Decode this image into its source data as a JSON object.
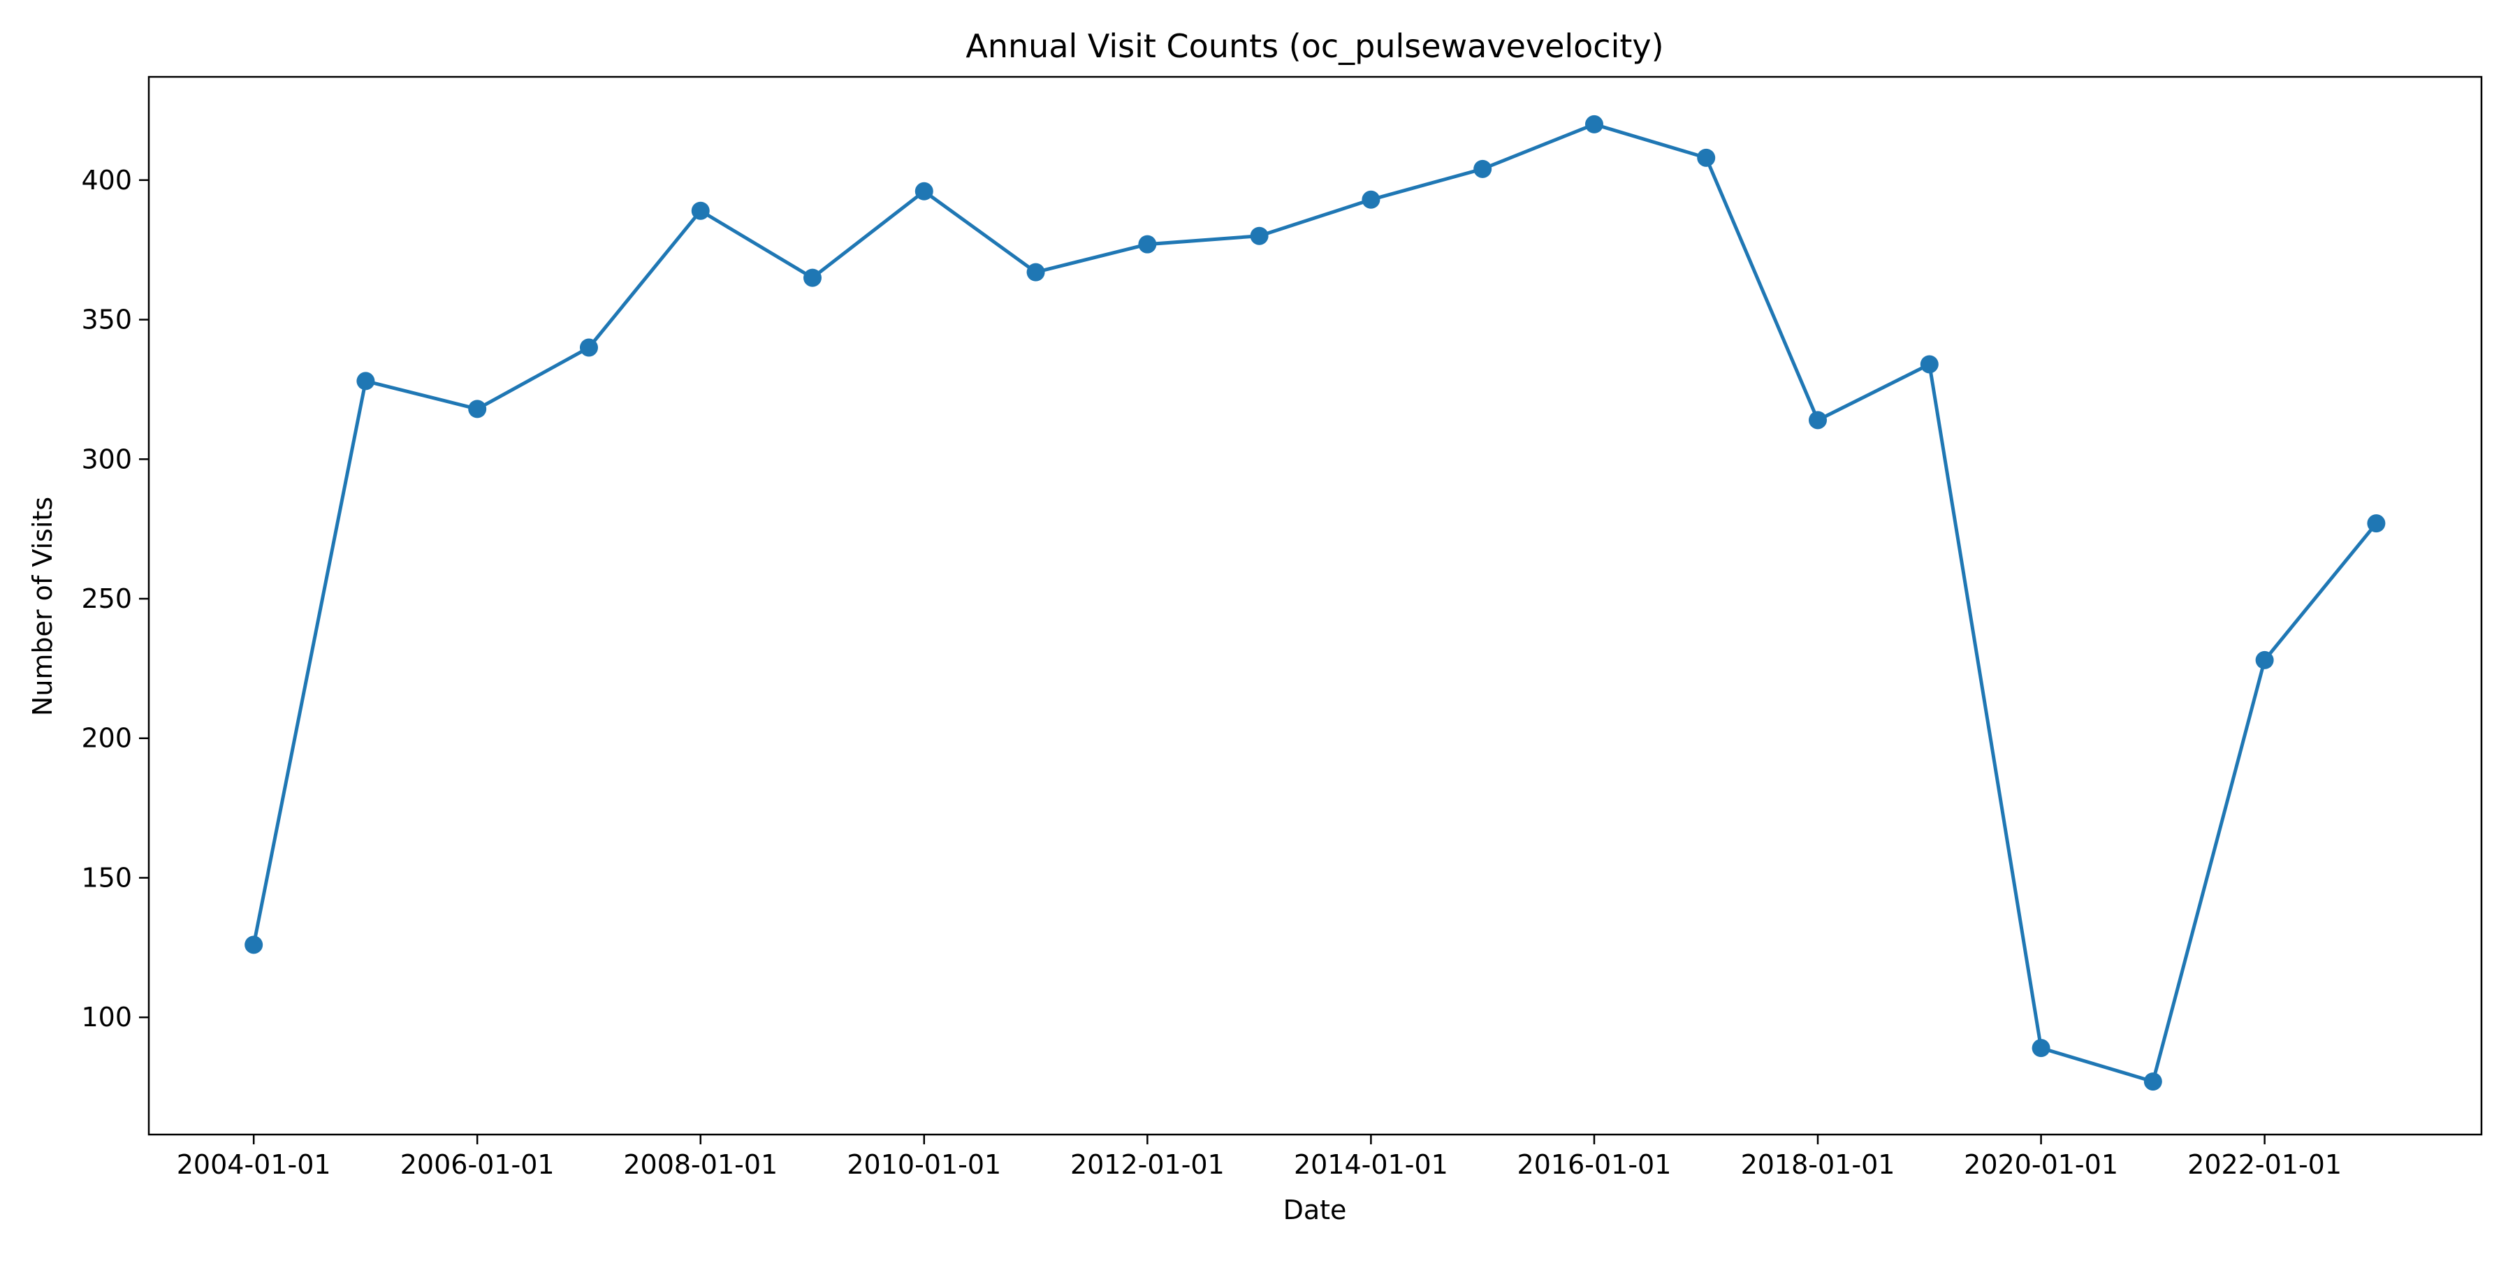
{
  "chart_data": {
    "type": "line",
    "title": "Annual Visit Counts (oc_pulsewavevelocity)",
    "xlabel": "Date",
    "ylabel": "Number of Visits",
    "x": [
      "2004-01-01",
      "2005-01-01",
      "2006-01-01",
      "2007-01-01",
      "2008-01-01",
      "2009-01-01",
      "2010-01-01",
      "2011-01-01",
      "2012-01-01",
      "2013-01-01",
      "2014-01-01",
      "2015-01-01",
      "2016-01-01",
      "2017-01-01",
      "2018-01-01",
      "2019-01-01",
      "2020-01-01",
      "2021-01-01",
      "2022-01-01",
      "2023-01-01"
    ],
    "series": [
      {
        "values": [
          126,
          328,
          318,
          340,
          389,
          365,
          396,
          367,
          377,
          380,
          393,
          404,
          420,
          408,
          314,
          334,
          89,
          77,
          228,
          277
        ],
        "color": "#1f77b4"
      }
    ],
    "x_ticks": [
      "2004-01-01",
      "2006-01-01",
      "2008-01-01",
      "2010-01-01",
      "2012-01-01",
      "2014-01-01",
      "2016-01-01",
      "2018-01-01",
      "2020-01-01",
      "2022-01-01"
    ],
    "y_ticks": [
      100,
      150,
      200,
      250,
      300,
      350,
      400
    ],
    "xlim": [
      "2003-01-23",
      "2023-12-11"
    ],
    "ylim": [
      58,
      437
    ],
    "grid": false,
    "legend": "none"
  }
}
